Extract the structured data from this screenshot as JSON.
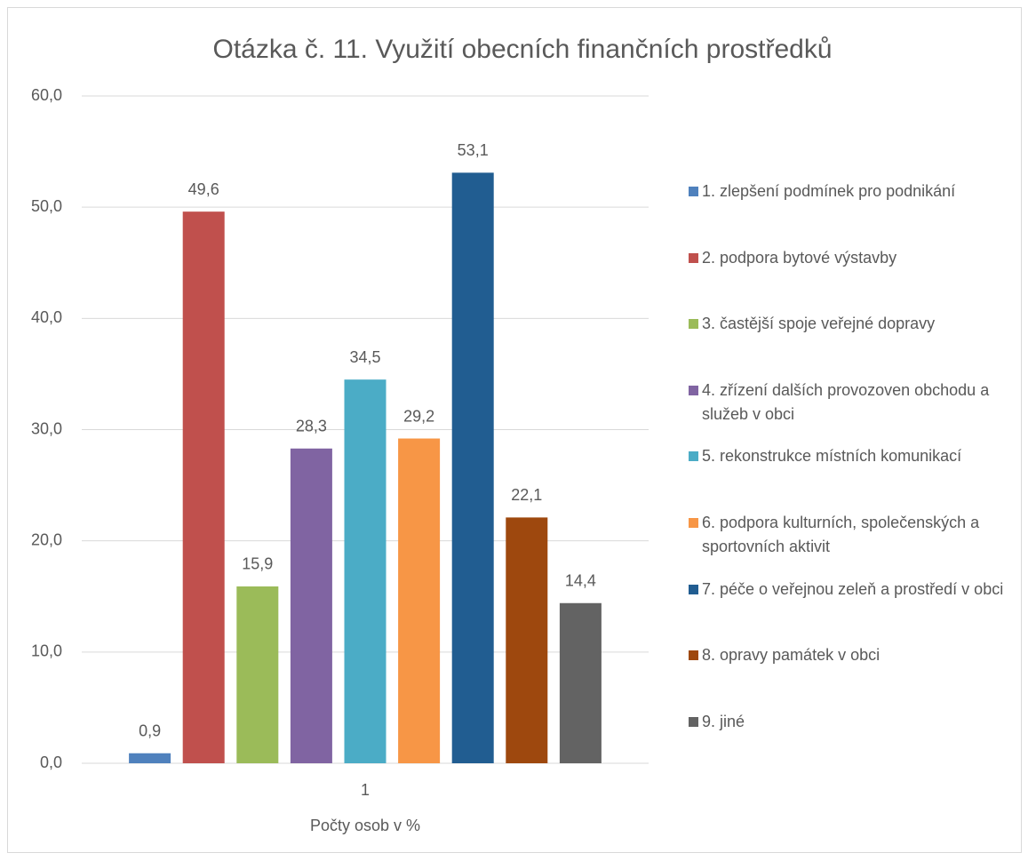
{
  "chart_data": {
    "type": "bar",
    "title": "Otázka č. 11. Využití obecních finančních prostředků",
    "categories": [
      "1"
    ],
    "x_label": "Počty osob v %",
    "ylim": [
      0,
      60
    ],
    "yticks": [
      {
        "value": 0,
        "label": "0,0"
      },
      {
        "value": 10,
        "label": "10,0"
      },
      {
        "value": 20,
        "label": "20,0"
      },
      {
        "value": 30,
        "label": "30,0"
      },
      {
        "value": 40,
        "label": "40,0"
      },
      {
        "value": 50,
        "label": "50,0"
      },
      {
        "value": 60,
        "label": "60,0"
      }
    ],
    "grid": true,
    "legend": "right",
    "series": [
      {
        "name": "1. zlepšení podmínek pro podnikání",
        "color": "#4f81bd",
        "values": [
          0.9
        ],
        "value_labels": [
          "0,9"
        ]
      },
      {
        "name": "2. podpora bytové výstavby",
        "color": "#c0504d",
        "values": [
          49.6
        ],
        "value_labels": [
          "49,6"
        ]
      },
      {
        "name": "3. častější spoje veřejné dopravy",
        "color": "#9bbb59",
        "values": [
          15.9
        ],
        "value_labels": [
          "15,9"
        ]
      },
      {
        "name": "4. zřízení dalších provozoven obchodu a služeb v obci",
        "color": "#8064a2",
        "values": [
          28.3
        ],
        "value_labels": [
          "28,3"
        ]
      },
      {
        "name": "5. rekonstrukce místních komunikací",
        "color": "#4bacc6",
        "values": [
          34.5
        ],
        "value_labels": [
          "34,5"
        ]
      },
      {
        "name": "6. podpora kulturních, společenských a sportovních aktivit",
        "color": "#f79646",
        "values": [
          29.2
        ],
        "value_labels": [
          "29,2"
        ]
      },
      {
        "name": "7. péče o veřejnou zeleň a prostředí v obci",
        "color": "#215d91",
        "values": [
          53.1
        ],
        "value_labels": [
          "53,1"
        ]
      },
      {
        "name": "8. opravy památek v obci",
        "color": "#9e480e",
        "values": [
          22.1
        ],
        "value_labels": [
          "22,1"
        ]
      },
      {
        "name": "9. jiné",
        "color": "#636363",
        "values": [
          14.4
        ],
        "value_labels": [
          "14,4"
        ]
      }
    ]
  }
}
